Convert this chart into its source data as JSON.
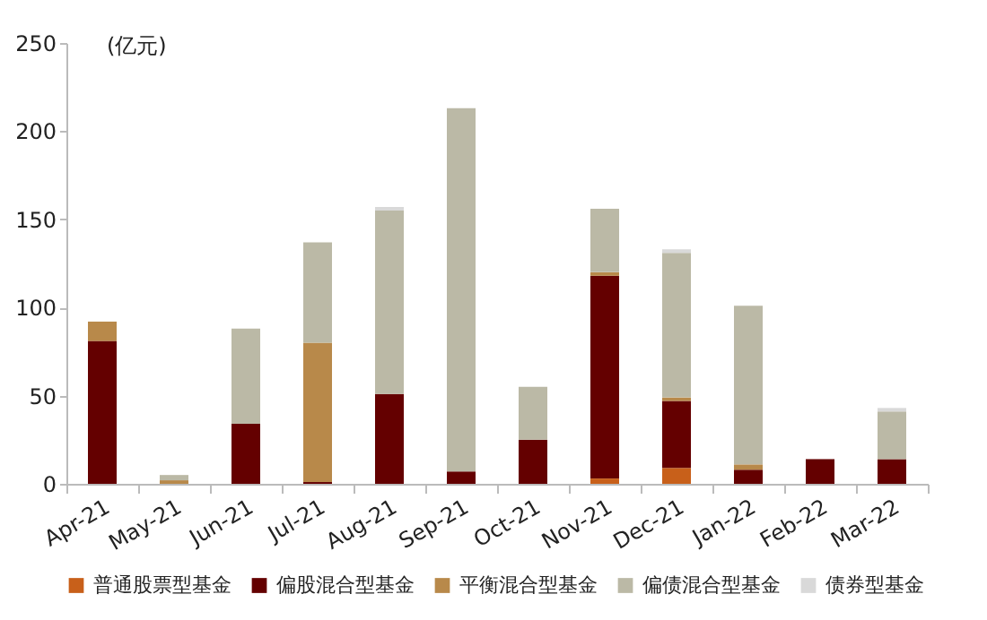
{
  "chart_data": {
    "type": "bar",
    "stacked": true,
    "ylabel": "(亿元)",
    "categories": [
      "Apr-21",
      "May-21",
      "Jun-21",
      "Jul-21",
      "Aug-21",
      "Sep-21",
      "Oct-21",
      "Nov-21",
      "Dec-21",
      "Jan-22",
      "Feb-22",
      "Mar-22"
    ],
    "series": [
      {
        "name": "普通股票型基金",
        "color": "#c8601a",
        "values": [
          0,
          0,
          0,
          0,
          0,
          0,
          0,
          3,
          9,
          0,
          0,
          0
        ]
      },
      {
        "name": "偏股混合型基金",
        "color": "#640000",
        "values": [
          81,
          0,
          34,
          1,
          51,
          7,
          25,
          115,
          38,
          8,
          14,
          14
        ]
      },
      {
        "name": "平衡混合型基金",
        "color": "#b8894a",
        "values": [
          11,
          2,
          0,
          79,
          0,
          0,
          0,
          2,
          2,
          3,
          0,
          0
        ]
      },
      {
        "name": "偏债混合型基金",
        "color": "#bbb9a6",
        "values": [
          0,
          3,
          54,
          57,
          104,
          206,
          30,
          36,
          82,
          90,
          0,
          27
        ]
      },
      {
        "name": "债券型基金",
        "color": "#d9d9d9",
        "values": [
          0,
          0,
          0,
          0,
          2,
          0,
          0,
          0,
          2,
          0,
          0,
          2
        ]
      }
    ],
    "ylim": [
      0,
      250
    ],
    "yticks": [
      0,
      50,
      100,
      150,
      200,
      250
    ],
    "grid": false,
    "legend": "bottom"
  }
}
